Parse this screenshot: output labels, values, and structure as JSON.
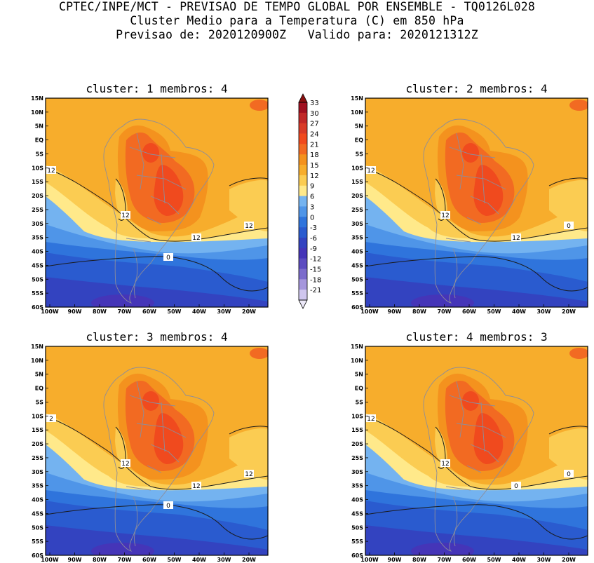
{
  "header": {
    "line1": "CPTEC/INPE/MCT - PREVISAO DE TEMPO GLOBAL POR ENSEMBLE - TQ0126L028",
    "line2": "Cluster Medio para a Temperatura (C) em 850 hPa",
    "line3": "Previsao de: 2020120900Z   Valido para: 2020121312Z"
  },
  "axes": {
    "lat_labels": [
      "15N",
      "10N",
      "5N",
      "EQ",
      "5S",
      "10S",
      "15S",
      "20S",
      "25S",
      "30S",
      "35S",
      "40S",
      "45S",
      "50S",
      "55S",
      "60S"
    ],
    "lon_labels": [
      "100W",
      "90W",
      "80W",
      "70W",
      "60W",
      "50W",
      "40W",
      "30W",
      "20W"
    ]
  },
  "colorbar": {
    "levels": [
      "33",
      "30",
      "27",
      "24",
      "21",
      "18",
      "15",
      "12",
      "9",
      "6",
      "3",
      "0",
      "-3",
      "-6",
      "-9",
      "-12",
      "-15",
      "-18",
      "-21"
    ],
    "colors": [
      "#a01020",
      "#c02828",
      "#d83b28",
      "#f04a1e",
      "#f26a22",
      "#f4921e",
      "#f7ad2c",
      "#fbcc52",
      "#ffe98a",
      "#74b3f0",
      "#4f95e8",
      "#2f74dc",
      "#2a5bcf",
      "#3343c0",
      "#4535b8",
      "#5c4cc0",
      "#7c6ccc",
      "#a596dc",
      "#cfc6ee"
    ]
  },
  "panels": [
    {
      "title": "cluster: 1   membros: 4",
      "contour_labels": [
        "12",
        "12",
        "12",
        "12",
        "0"
      ]
    },
    {
      "title": "cluster: 2   membros: 4",
      "contour_labels": [
        "12",
        "12",
        "12",
        "0"
      ]
    },
    {
      "title": "cluster: 3   membros: 4",
      "contour_labels": [
        "2",
        "12",
        "12",
        "12",
        "0"
      ]
    },
    {
      "title": "cluster: 4   membros: 3",
      "contour_labels": [
        "12",
        "12",
        "0",
        "0"
      ]
    }
  ]
}
